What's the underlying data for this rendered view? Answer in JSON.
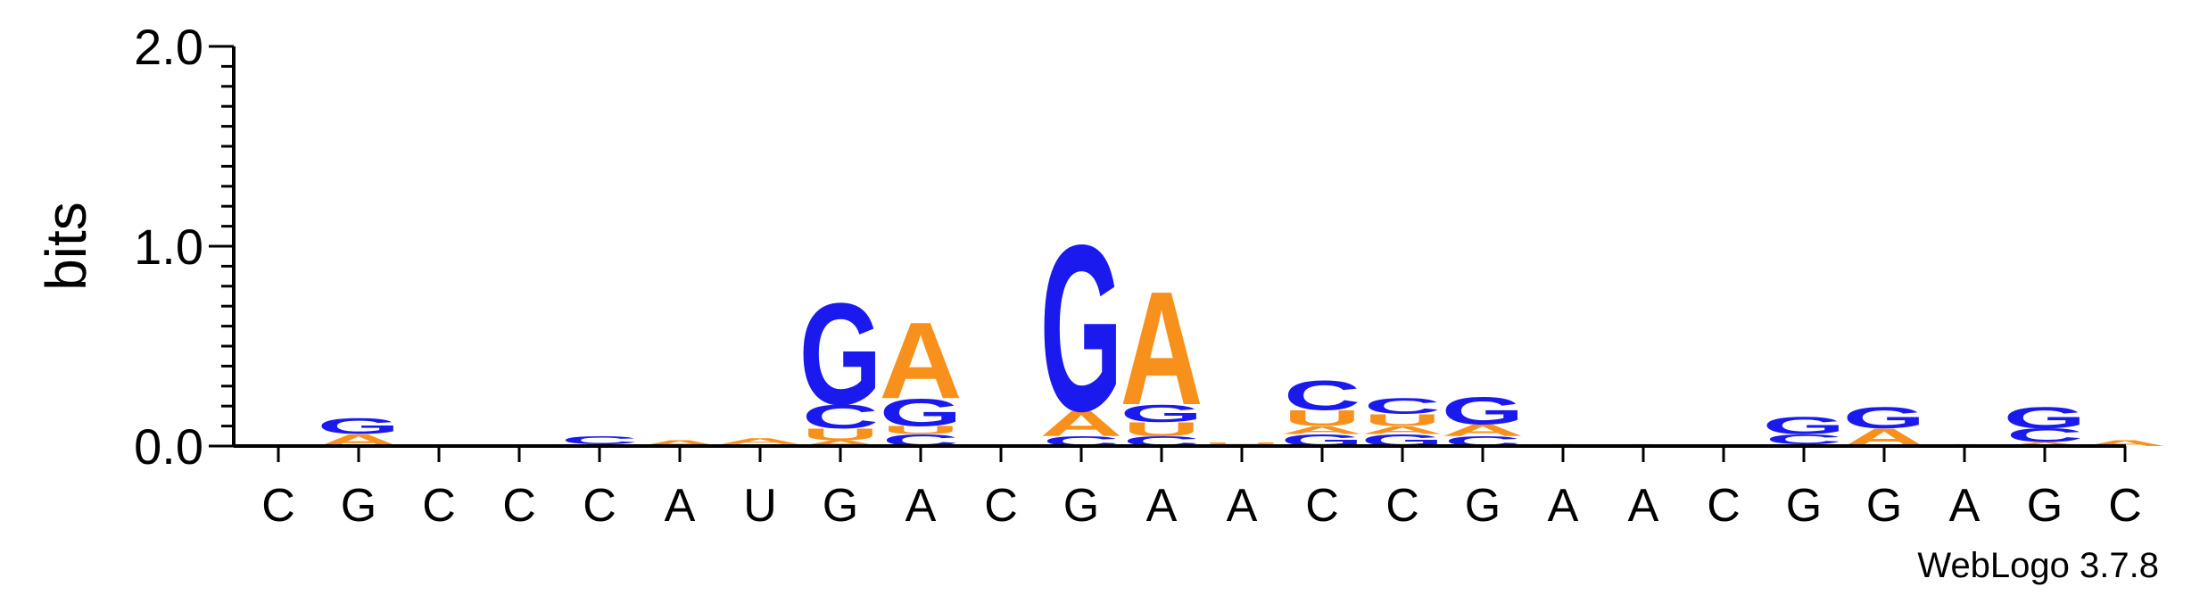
{
  "chart_data": {
    "type": "sequence-logo",
    "ylabel": "bits",
    "ylim": [
      0,
      2.0
    ],
    "yticks": [
      {
        "value": 0.0,
        "label": "0.0"
      },
      {
        "value": 1.0,
        "label": "1.0"
      },
      {
        "value": 2.0,
        "label": "2.0"
      }
    ],
    "ytick_step_minor": 0.1,
    "categories": [
      "C",
      "G",
      "C",
      "C",
      "C",
      "A",
      "U",
      "G",
      "A",
      "C",
      "G",
      "A",
      "A",
      "C",
      "C",
      "G",
      "A",
      "A",
      "C",
      "G",
      "G",
      "A",
      "G",
      "C"
    ],
    "colors": {
      "A": "#f8901c",
      "U": "#f8901c",
      "G": "#1a1aee",
      "C": "#1a1aee"
    },
    "stacks": [
      [],
      [
        [
          "A",
          0.06
        ],
        [
          "G",
          0.08
        ]
      ],
      [],
      [
        [
          "C",
          0.01
        ]
      ],
      [
        [
          "U",
          0.01
        ],
        [
          "C",
          0.04
        ]
      ],
      [
        [
          "A",
          0.03
        ]
      ],
      [
        [
          "U",
          0.01
        ],
        [
          "A",
          0.03
        ]
      ],
      [
        [
          "A",
          0.03
        ],
        [
          "U",
          0.06
        ],
        [
          "C",
          0.12
        ],
        [
          "G",
          0.52
        ]
      ],
      [
        [
          "C",
          0.06
        ],
        [
          "U",
          0.04
        ],
        [
          "G",
          0.14
        ],
        [
          "A",
          0.39
        ]
      ],
      [],
      [
        [
          "C",
          0.05
        ],
        [
          "A",
          0.13
        ],
        [
          "G",
          0.85
        ]
      ],
      [
        [
          "C",
          0.05
        ],
        [
          "U",
          0.07
        ],
        [
          "G",
          0.09
        ],
        [
          "A",
          0.58
        ]
      ],
      [
        [
          "A",
          0.01
        ],
        [
          "U",
          0.01
        ]
      ],
      [
        [
          "G",
          0.06
        ],
        [
          "A",
          0.04
        ],
        [
          "U",
          0.08
        ],
        [
          "C",
          0.15
        ]
      ],
      [
        [
          "G",
          0.06
        ],
        [
          "A",
          0.04
        ],
        [
          "U",
          0.06
        ],
        [
          "C",
          0.08
        ]
      ],
      [
        [
          "C",
          0.05
        ],
        [
          "A",
          0.06
        ],
        [
          "G",
          0.14
        ]
      ],
      [
        [
          "A",
          0.01
        ]
      ],
      [
        [
          "A",
          0.01
        ]
      ],
      [],
      [
        [
          "A",
          0.01
        ],
        [
          "C",
          0.05
        ],
        [
          "G",
          0.09
        ]
      ],
      [
        [
          "A",
          0.09
        ],
        [
          "G",
          0.11
        ]
      ],
      [
        [
          "A",
          0.01
        ]
      ],
      [
        [
          "A",
          0.02
        ],
        [
          "C",
          0.07
        ],
        [
          "G",
          0.11
        ]
      ],
      [
        [
          "A",
          0.03
        ]
      ]
    ]
  },
  "credit": "WebLogo 3.7.8"
}
